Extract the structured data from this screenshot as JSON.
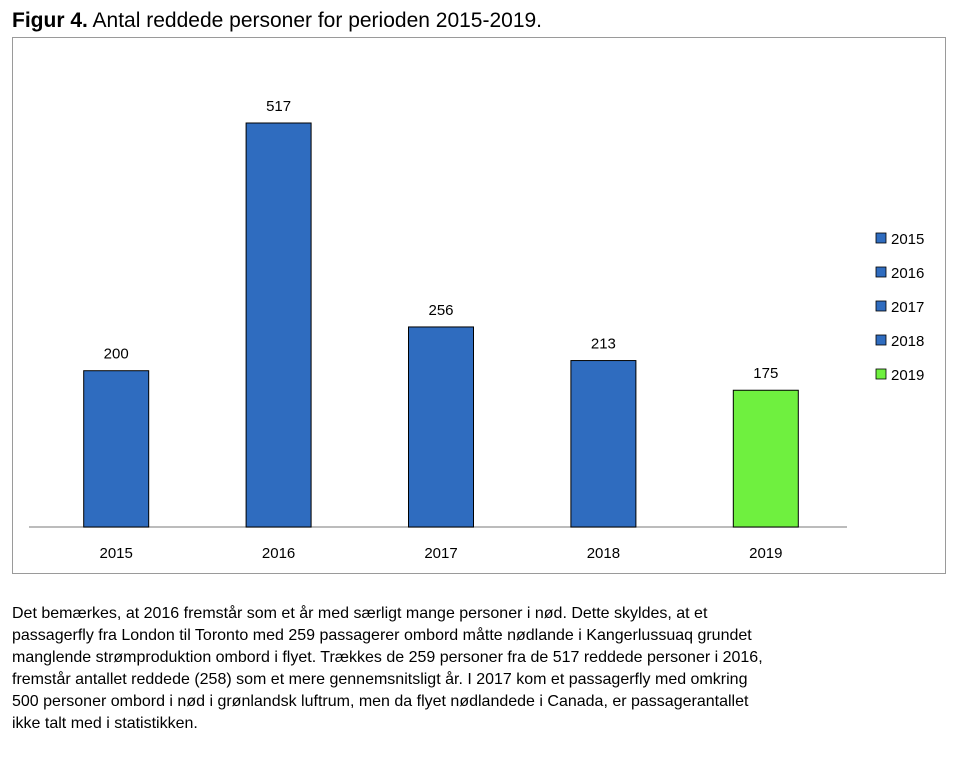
{
  "figure": {
    "label": "Figur 4.",
    "title": "Antal reddede personer for perioden 2015-2019."
  },
  "chart_data": {
    "type": "bar",
    "categories": [
      "2015",
      "2016",
      "2017",
      "2018",
      "2019"
    ],
    "values": [
      200,
      517,
      256,
      213,
      175
    ],
    "data_labels": [
      "200",
      "517",
      "256",
      "213",
      "175"
    ],
    "bar_colors": [
      "#2f6cbf",
      "#2f6cbf",
      "#2f6cbf",
      "#2f6cbf",
      "#6ff03f"
    ],
    "bar_stroke": "#000000",
    "legend": [
      {
        "label": "2015",
        "color": "#2f6cbf"
      },
      {
        "label": "2016",
        "color": "#2f6cbf"
      },
      {
        "label": "2017",
        "color": "#2f6cbf"
      },
      {
        "label": "2018",
        "color": "#2f6cbf"
      },
      {
        "label": "2019",
        "color": "#6ff03f"
      }
    ],
    "legend_position": "right",
    "ylim": [
      0,
      517
    ],
    "grid": false,
    "xlabel": "",
    "ylabel": ""
  },
  "paragraph": {
    "lines": [
      "Det bemærkes, at 2016 fremstår som et år med særligt mange personer i nød. Dette skyldes, at et",
      "passagerfly fra London til Toronto med 259 passagerer ombord måtte nødlande i Kangerlussuaq grundet",
      "manglende strømproduktion ombord i flyet. Trækkes de 259 personer fra de 517 reddede personer i 2016,",
      "fremstår antallet reddede (258) som et mere gennemsnitsligt år. I 2017 kom et passagerfly med omkring",
      "500 personer ombord i nød i grønlandsk luftrum, men da flyet nødlandede i Canada, er passagerantallet",
      "ikke talt med i statistikken."
    ]
  }
}
